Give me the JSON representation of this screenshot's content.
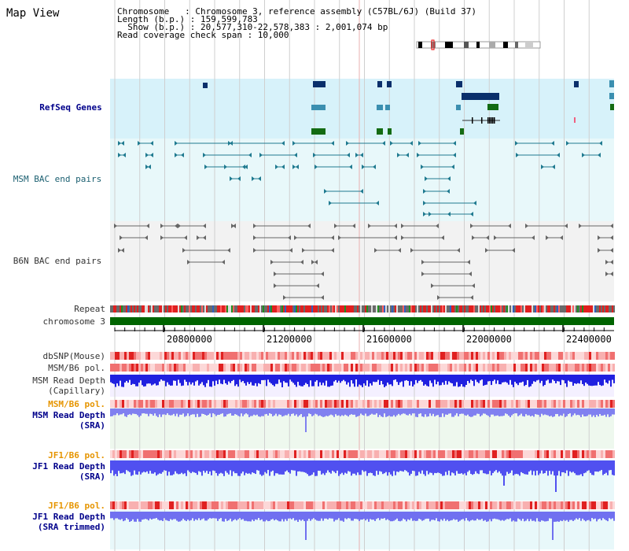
{
  "title": "Map View",
  "info": {
    "line1": "Chromosome   : Chromosome 3, reference assembly (C57BL/6J) (Build 37)",
    "line2": "Length (b.p.) : 159,599,783",
    "line3": "  Show (b.p.) : 20,577,310-22,578,383 : 2,001,074 bp",
    "line4": "Read coverage check span : 10,000"
  },
  "tracks": {
    "refseq": "RefSeq Genes",
    "msm_bac": "MSM BAC end pairs",
    "b6n_bac": "B6N BAC end pairs",
    "repeat": "Repeat",
    "chromosome": "chromosome 3",
    "dbsnp": "dbSNP(Mouse)",
    "msm_pol1": "MSM/B6 pol.",
    "msm_depth_cap_1": "MSM Read Depth",
    "msm_depth_cap_2": "(Capillary)",
    "msm_pol2": "MSM/B6 pol.",
    "msm_depth_sra_1": "MSM Read Depth",
    "msm_depth_sra_2": "(SRA)",
    "jf1_pol1": "JF1/B6 pol.",
    "jf1_depth_1": "JF1 Read Depth",
    "jf1_depth_2": "(SRA)",
    "jf1_pol2": "JF1/B6 pol.",
    "jf1_trim_1": "JF1 Read Depth",
    "jf1_trim_2": "(SRA trimmed)"
  },
  "axis": {
    "ticks": [
      "20800000",
      "21200000",
      "21600000",
      "22000000",
      "22400000"
    ]
  },
  "colors": {
    "refseq_bg": "#d7f2fa",
    "msm_bac_bg": "#e8f8fa",
    "b6n_bg": "#f2f2f2",
    "gene_navy": "#0a2f6b",
    "gene_teal": "#3b8fb0",
    "gene_green": "#136b13",
    "chromosome_green": "#006400",
    "depth_blue": "#2020e0",
    "depth_light_blue": "#8080f0"
  }
}
